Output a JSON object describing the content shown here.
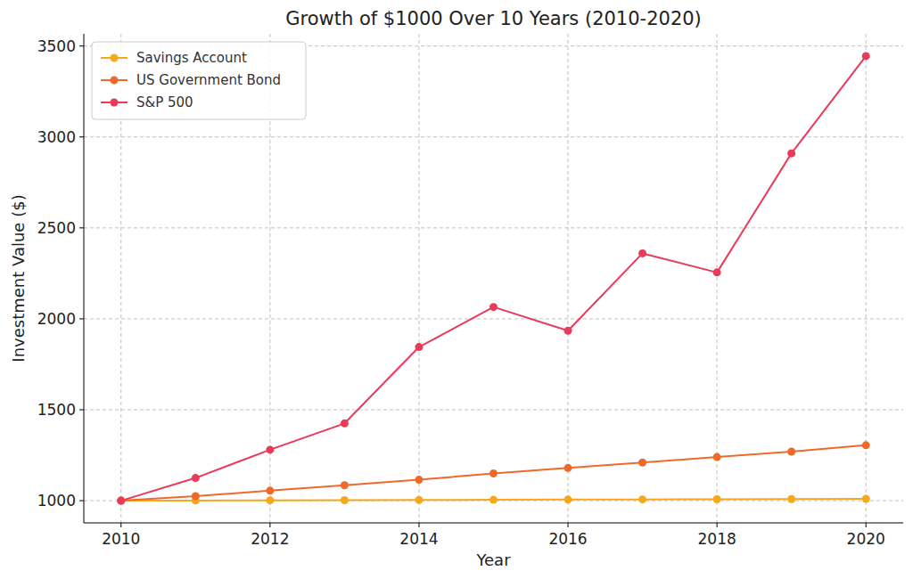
{
  "chart_data": {
    "type": "line",
    "title": "Growth of $1000 Over 10 Years (2010-2020)",
    "x_label": "Year",
    "y_label": "Investment Value ($)",
    "x": [
      2010,
      2011,
      2012,
      2013,
      2014,
      2015,
      2016,
      2017,
      2018,
      2019,
      2020
    ],
    "series": [
      {
        "name": "Savings Account",
        "color": "#f6a81c",
        "marker": "circle",
        "values": [
          1000,
          1001,
          1002,
          1003,
          1004,
          1005,
          1006,
          1007,
          1008,
          1009,
          1010
        ]
      },
      {
        "name": "US Government Bond",
        "color": "#ee6a2a",
        "marker": "circle",
        "values": [
          1000,
          1025,
          1055,
          1085,
          1115,
          1150,
          1180,
          1210,
          1240,
          1270,
          1305
        ]
      },
      {
        "name": "S&P 500",
        "color": "#ea3a5a",
        "marker": "circle",
        "values": [
          1000,
          1125,
          1280,
          1425,
          1845,
          2065,
          1935,
          2360,
          2255,
          2910,
          3445
        ]
      }
    ],
    "xlim": [
      2009.5,
      2020.5
    ],
    "xticks": [
      2010,
      2012,
      2014,
      2016,
      2018,
      2020
    ],
    "ylim": [
      878,
      3567
    ],
    "yticks": [
      1000,
      1500,
      2000,
      2500,
      3000,
      3500
    ],
    "grid": true,
    "legend": "upper-left"
  }
}
